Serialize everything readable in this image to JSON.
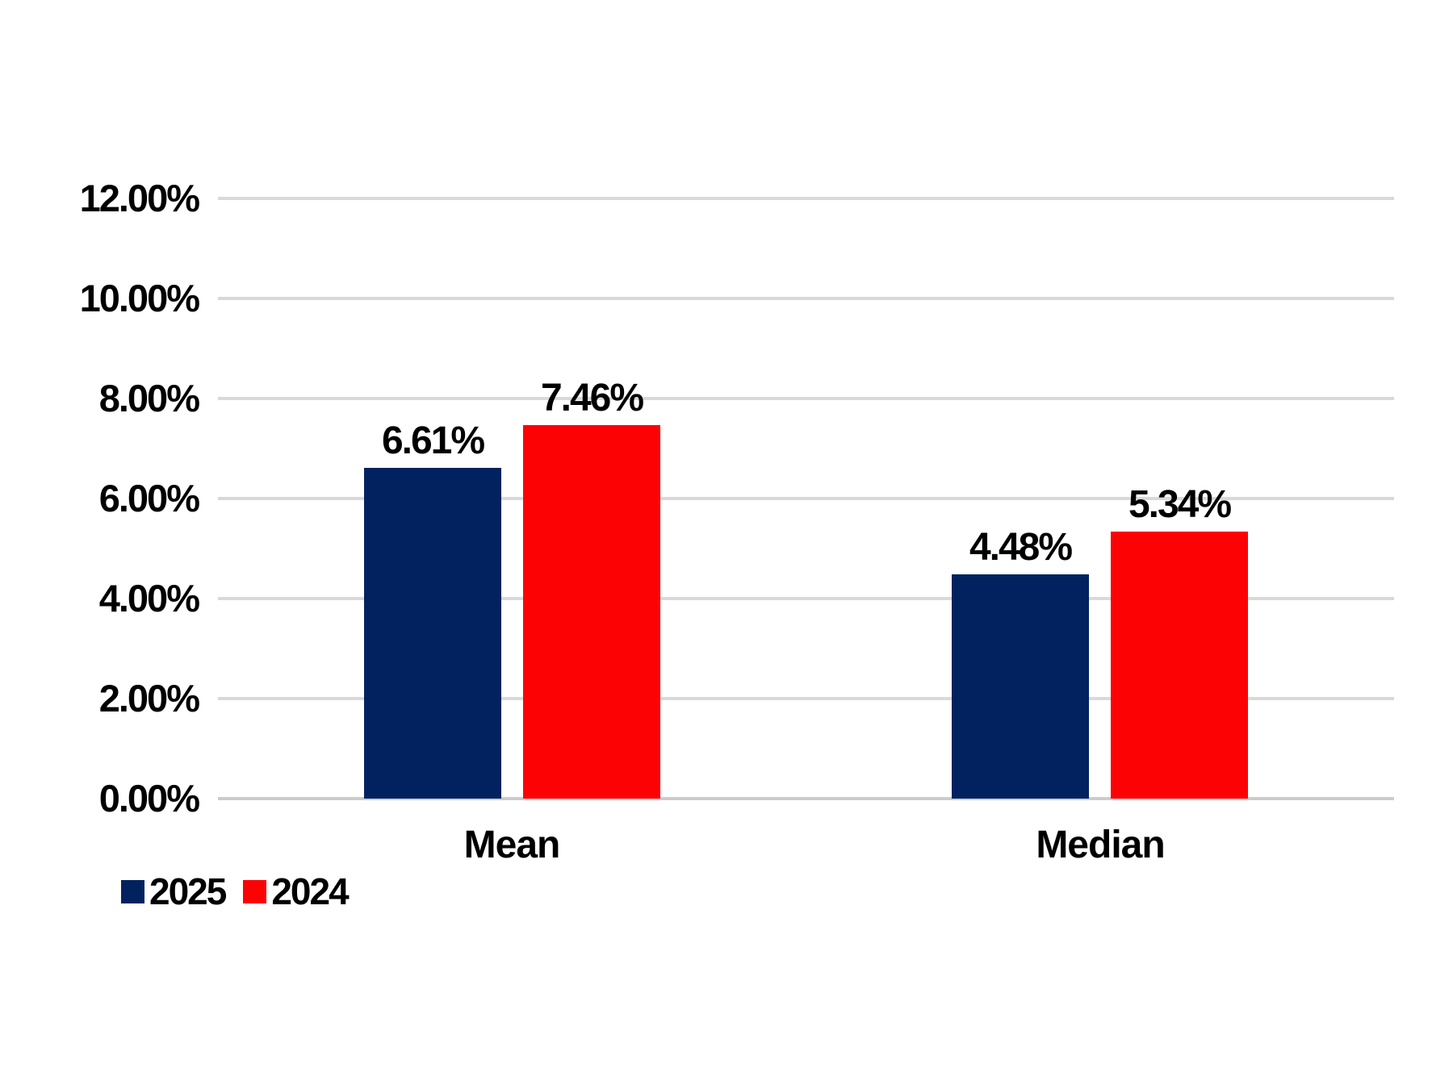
{
  "chart_data": {
    "type": "bar",
    "title": "",
    "xlabel": "",
    "ylabel": "",
    "categories": [
      "Mean",
      "Median"
    ],
    "series": [
      {
        "name": "2025",
        "color": "#02225F",
        "values": [
          6.61,
          4.48
        ],
        "data_labels": [
          "6.61%",
          "4.48%"
        ]
      },
      {
        "name": "2024",
        "color": "#FC0204",
        "values": [
          7.46,
          5.34
        ],
        "data_labels": [
          "7.46%",
          "5.34%"
        ]
      }
    ],
    "y_axis": {
      "min": 0,
      "max": 12,
      "step": 2,
      "tick_labels": [
        "0.00%",
        "2.00%",
        "4.00%",
        "6.00%",
        "8.00%",
        "10.00%",
        "12.00%"
      ]
    },
    "grid": true,
    "legend_position": "bottom-left",
    "colors": {
      "gridline": "#D9D9D9",
      "baseline": "#CCCCCC",
      "text": "#000000",
      "background": "#FFFFFF"
    }
  }
}
